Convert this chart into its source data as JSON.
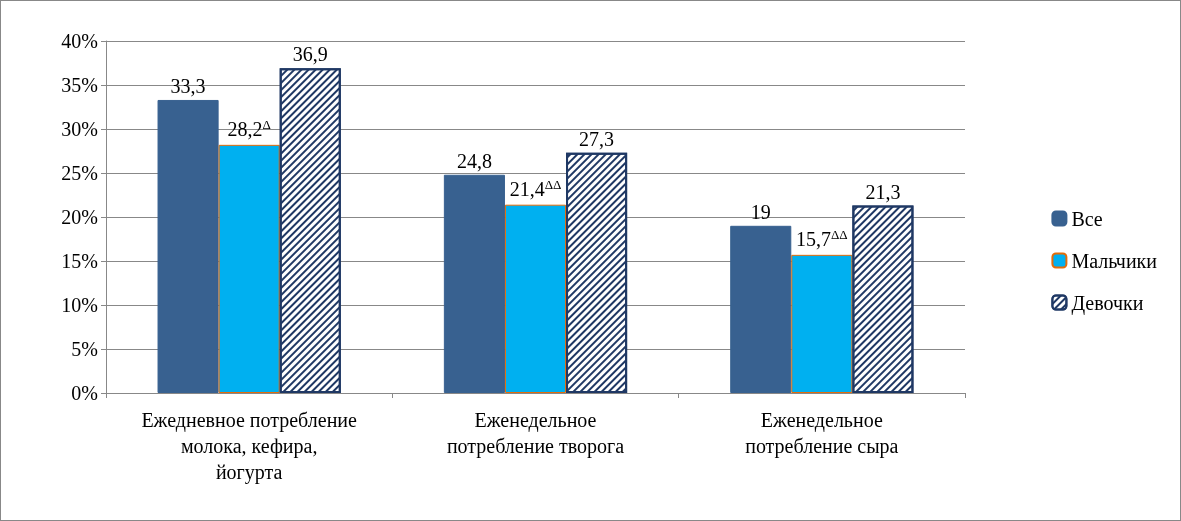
{
  "chart_data": {
    "type": "bar",
    "categories": [
      "Ежедневное потребление молока, кефира, йогурта",
      "Еженедельное потребление творога",
      "Еженедельное потребление сыра"
    ],
    "series": [
      {
        "name": "Все",
        "color": "#386190",
        "values": [
          33.3,
          24.8,
          19
        ],
        "value_labels": [
          "33,3",
          "24,8",
          "19"
        ]
      },
      {
        "name": "Мальчики",
        "color": "#00b0f0",
        "values": [
          28.2,
          21.4,
          15.7
        ],
        "value_labels": [
          "28,2$^{Δ}$",
          "21,4$^{ΔΔ}$",
          "15,7$^{ΔΔ}$"
        ]
      },
      {
        "name": "Девочки",
        "color": "#ffffff",
        "values": [
          36.9,
          27.3,
          21.3
        ],
        "value_labels": [
          "36,9",
          "27,3",
          "21,3"
        ]
      }
    ],
    "ylim": [
      0,
      40
    ],
    "yticks": [
      {
        "value": 0,
        "label": "0%"
      },
      {
        "value": 5,
        "label": "5%"
      },
      {
        "value": 10,
        "label": "10%"
      },
      {
        "value": 15,
        "label": "15%"
      },
      {
        "value": 20,
        "label": "20%"
      },
      {
        "value": 25,
        "label": "25%"
      },
      {
        "value": 30,
        "label": "30%"
      },
      {
        "value": 35,
        "label": "35%"
      },
      {
        "value": 40,
        "label": "40%"
      }
    ],
    "grid": "y",
    "legend": "right"
  }
}
